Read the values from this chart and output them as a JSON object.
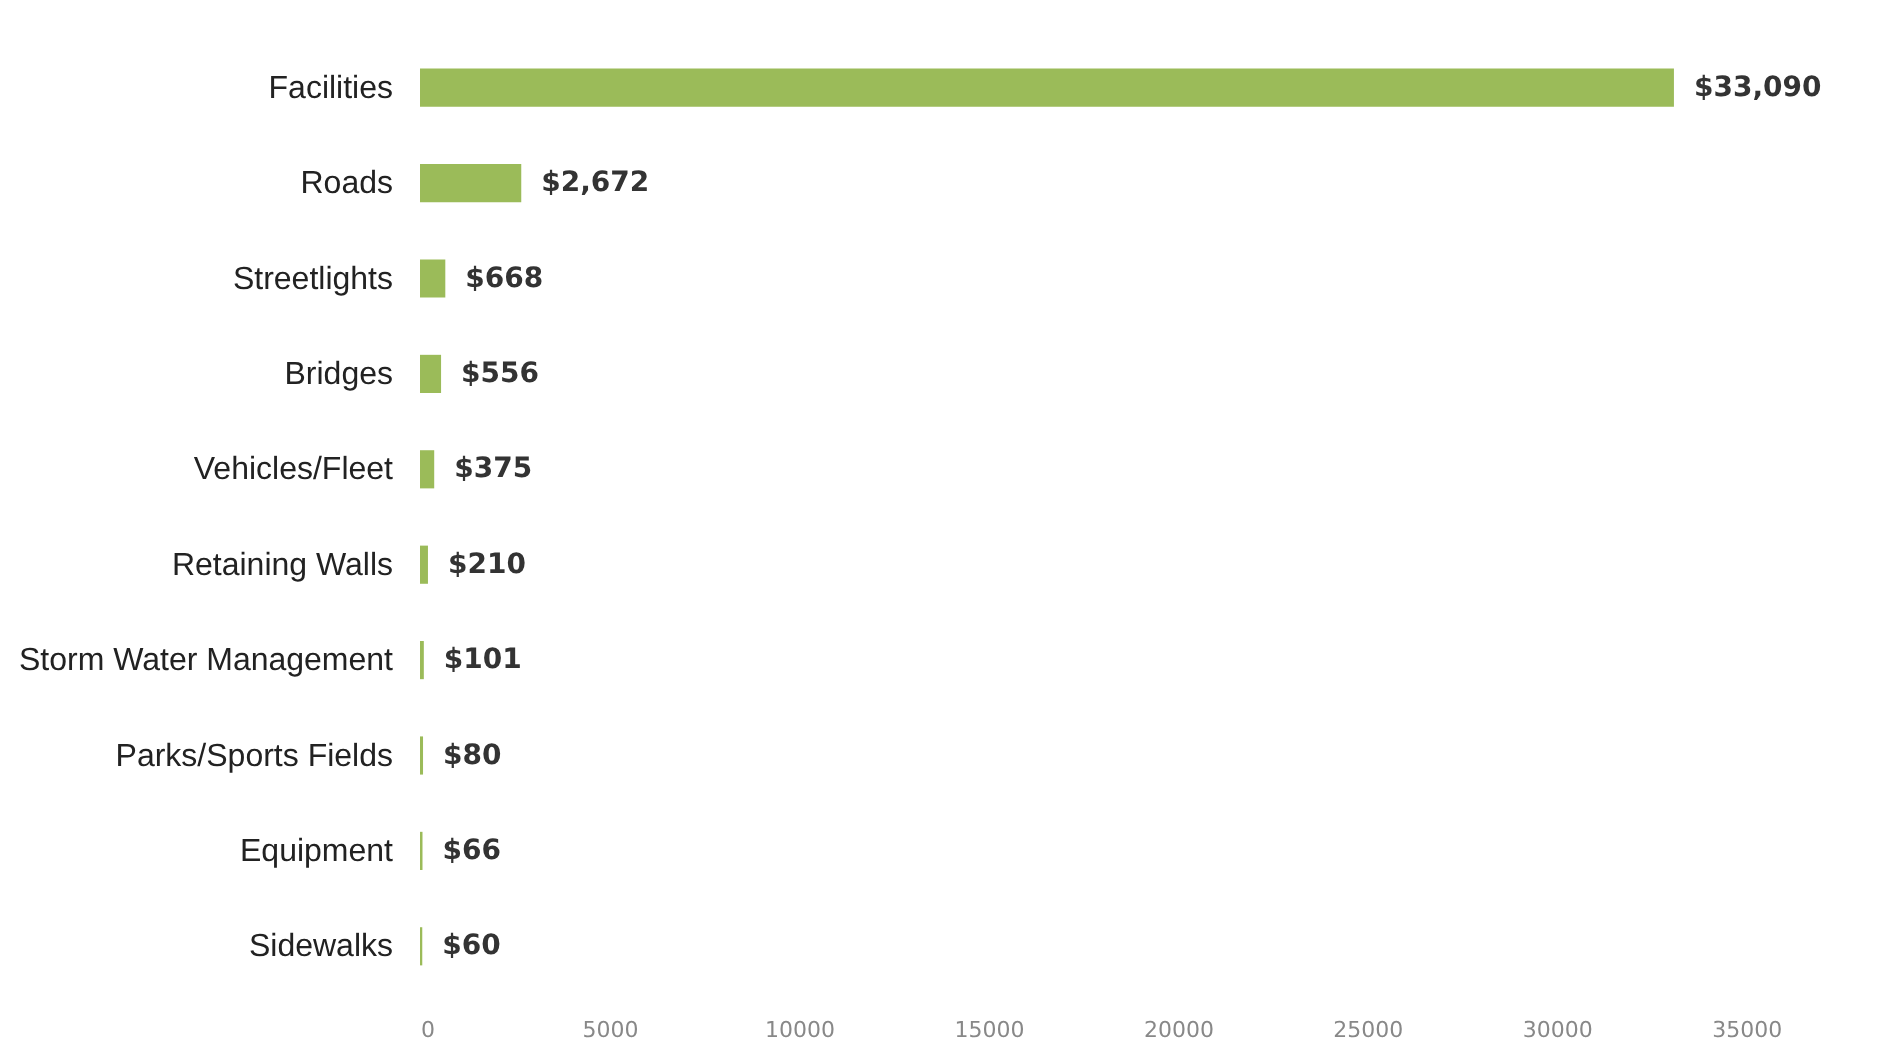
{
  "chart_data": {
    "type": "bar",
    "orientation": "horizontal",
    "categories": [
      "Facilities",
      "Roads",
      "Streetlights",
      "Bridges",
      "Vehicles/Fleet",
      "Retaining Walls",
      "Storm Water Management",
      "Parks/Sports Fields",
      "Equipment",
      "Sidewalks"
    ],
    "values": [
      33090,
      2672,
      668,
      556,
      375,
      210,
      101,
      80,
      66,
      60
    ],
    "value_labels": [
      "$33,090",
      "$2,672",
      "$668",
      "$556",
      "$375",
      "$210",
      "$101",
      "$80",
      "$66",
      "$60"
    ],
    "color": "#9bbb59",
    "xlim": [
      0,
      38000
    ],
    "xticks": [
      0,
      5000,
      10000,
      15000,
      20000,
      25000,
      30000,
      35000
    ],
    "grid": false
  }
}
